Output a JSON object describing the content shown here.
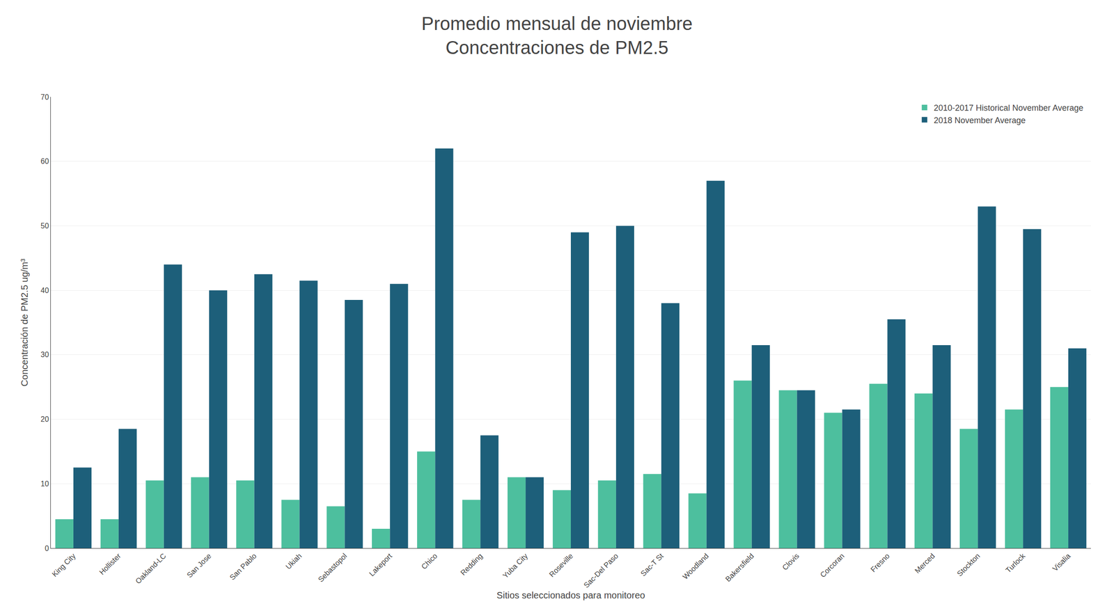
{
  "chart_data": {
    "type": "bar",
    "title": "Promedio mensual de noviembre",
    "subtitle": "Concentraciones de PM2.5",
    "x_label": "Sitios seleccionados para monitoreo",
    "y_label": "Concentración de PM2.5 ug/m³",
    "categories": [
      "King City",
      "Hollister",
      "Oakland-LC",
      "San Jose",
      "San Pablo",
      "Ukiah",
      "Sebastopol",
      "Lakeport",
      "Chico",
      "Redding",
      "Yuba City",
      "Roseville",
      "Sac-Del Paso",
      "Sac-T St",
      "Woodland",
      "Bakersfield",
      "Clovis",
      "Corcoran",
      "Fresno",
      "Merced",
      "Stockton",
      "Turlock",
      "Visalia"
    ],
    "series": [
      {
        "name": "2010-2017 Historical November Average",
        "color": "#4dbf9e",
        "values": [
          4.5,
          4.5,
          10.5,
          11.0,
          10.5,
          7.5,
          6.5,
          3.0,
          15.0,
          7.5,
          11.0,
          9.0,
          10.5,
          11.5,
          8.5,
          26.0,
          24.5,
          21.0,
          25.5,
          24.0,
          18.5,
          21.5,
          25.0
        ]
      },
      {
        "name": "2018 November Average",
        "color": "#1d5f7a",
        "values": [
          12.5,
          18.5,
          44.0,
          40.0,
          42.5,
          41.5,
          38.5,
          41.0,
          62.0,
          17.5,
          11.0,
          49.0,
          50.0,
          38.0,
          57.0,
          31.5,
          24.5,
          21.5,
          35.5,
          31.5,
          53.0,
          49.5,
          31.0
        ]
      }
    ],
    "ylim": [
      0,
      70
    ],
    "yticks": [
      0,
      10,
      20,
      30,
      40,
      50,
      60,
      70
    ],
    "grid": true,
    "legend": "upper right"
  }
}
